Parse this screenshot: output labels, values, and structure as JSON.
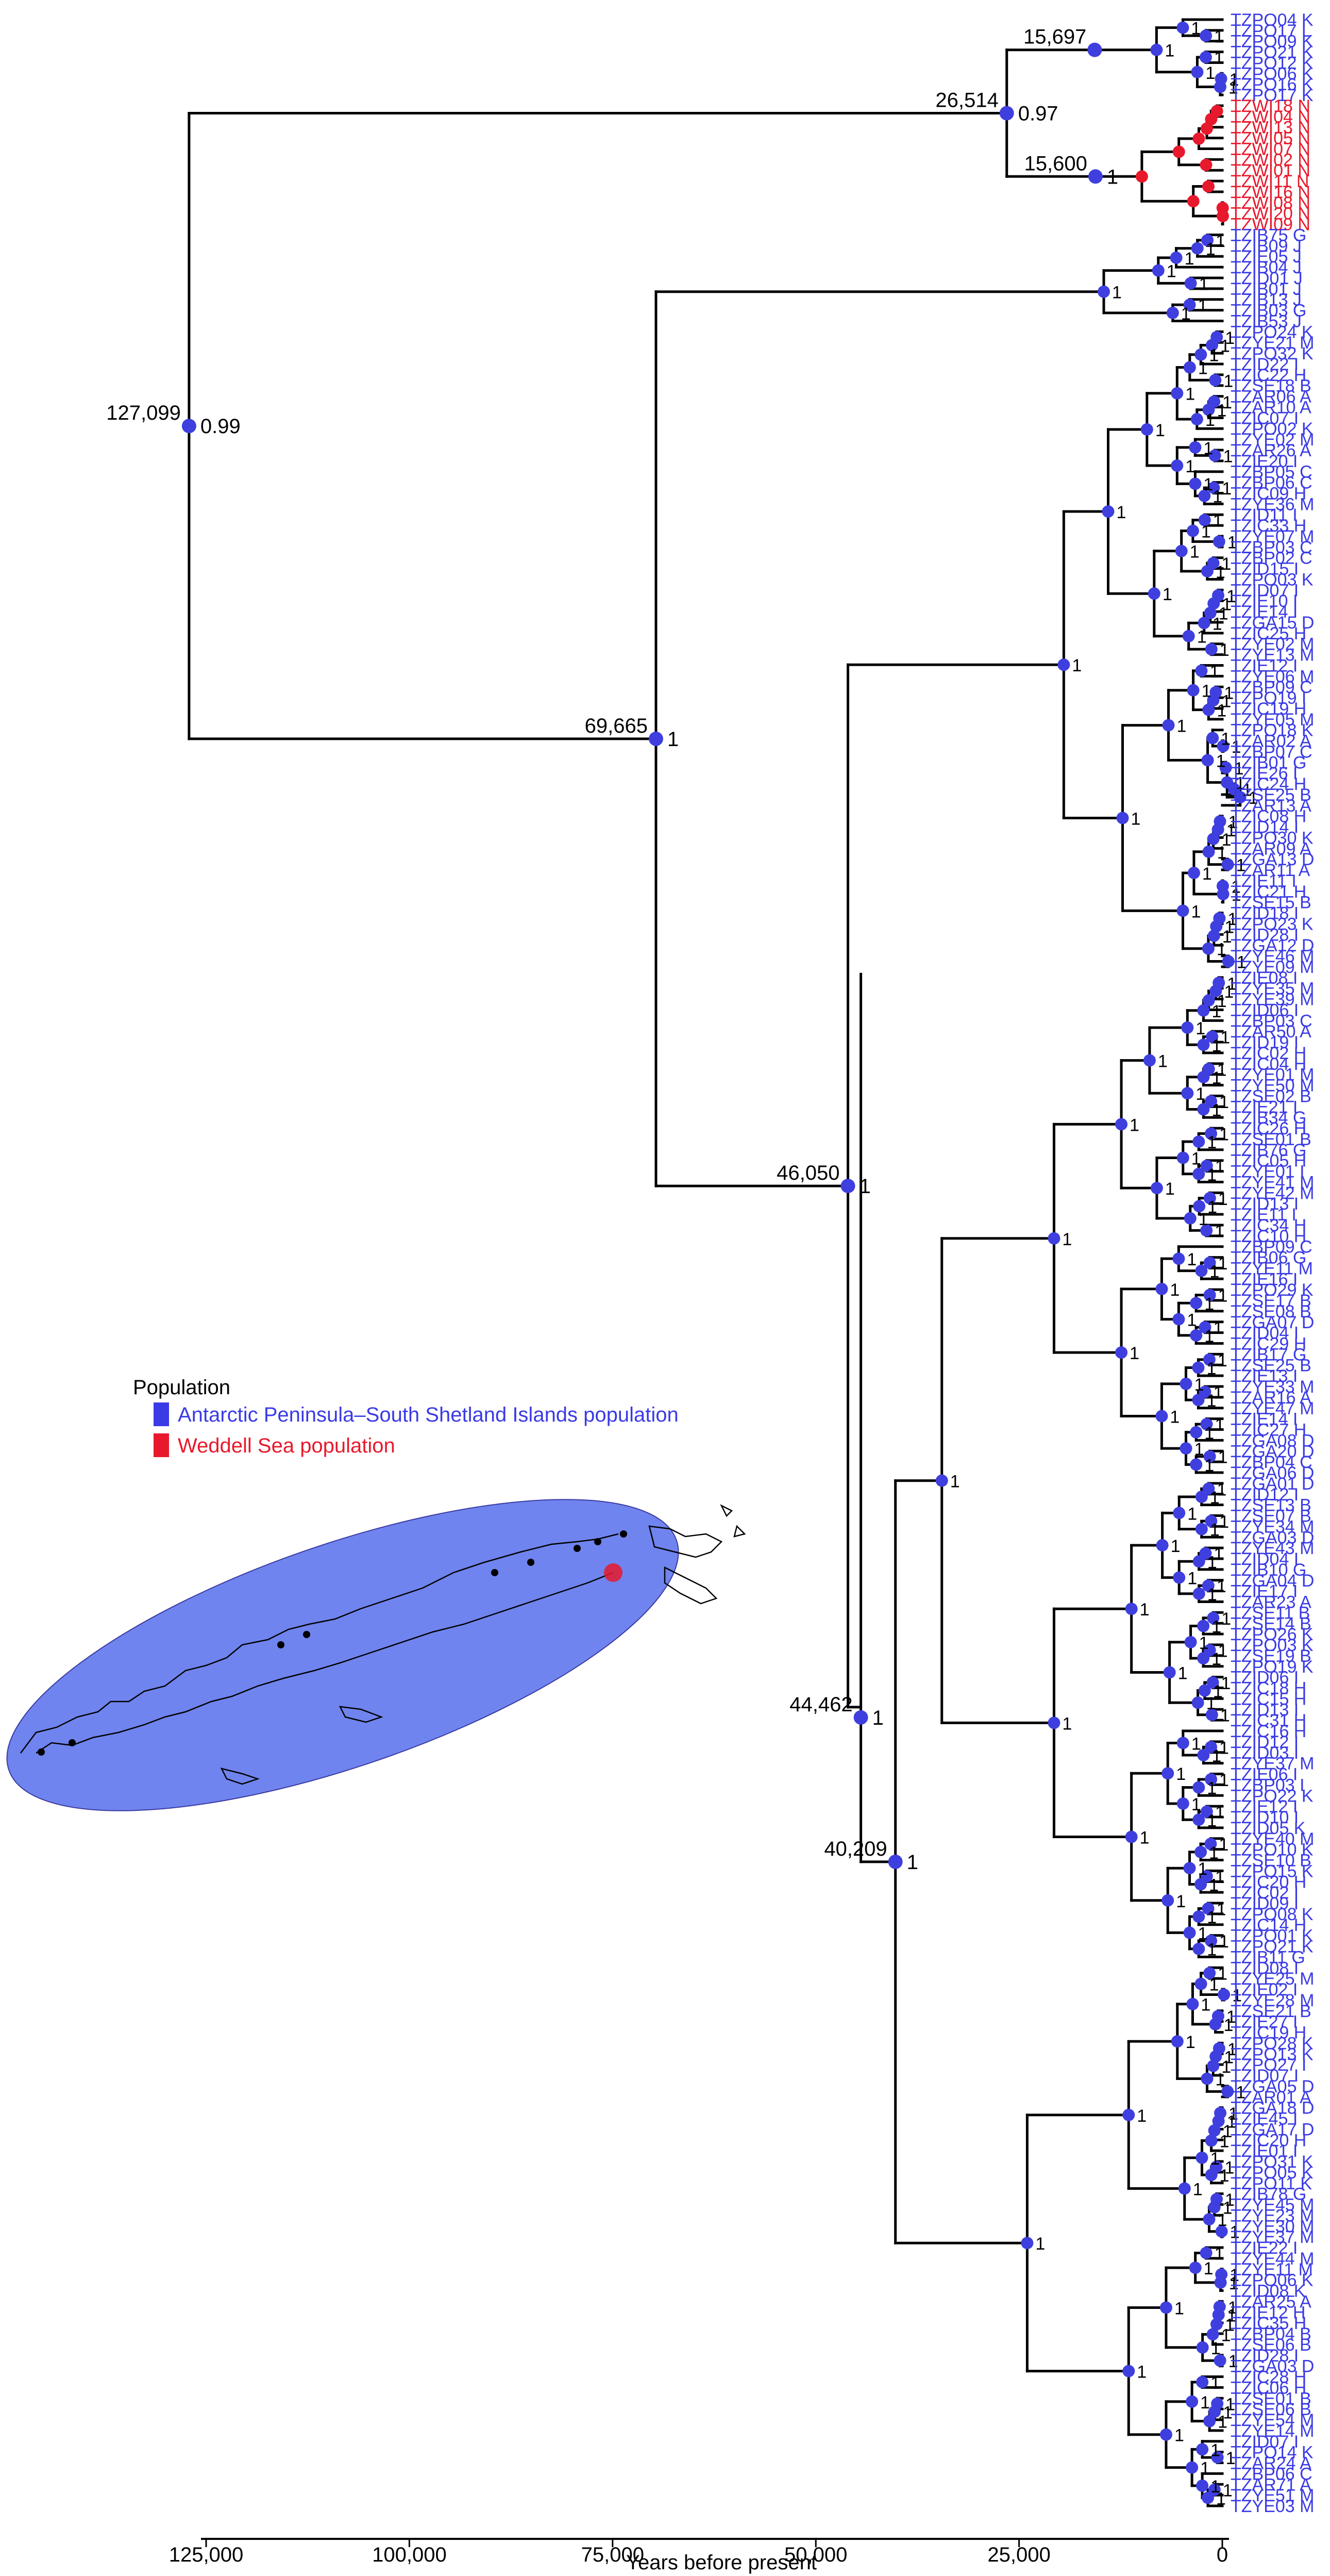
{
  "colors": {
    "antarctic": "#3a3ae6",
    "weddell": "#e8192c",
    "map_fill": "#6f84ee"
  },
  "axis": {
    "title": "Years before present",
    "ticks": [
      {
        "value": 125000,
        "label": "125,000"
      },
      {
        "value": 100000,
        "label": "100,000"
      },
      {
        "value": 75000,
        "label": "75,000"
      },
      {
        "value": 50000,
        "label": "50,000"
      },
      {
        "value": 25000,
        "label": "25,000"
      },
      {
        "value": 0,
        "label": "0"
      }
    ]
  },
  "legend": {
    "title": "Population",
    "items": [
      {
        "label": "Antarctic Peninsula–South Shetland Islands population",
        "color": "#3a3ae6"
      },
      {
        "label": "Weddell Sea population",
        "color": "#e8192c"
      }
    ]
  },
  "nodes": [
    {
      "id": "root",
      "age_label": "127,099",
      "support": "0.99",
      "age": 127099
    },
    {
      "id": "n26514",
      "age_label": "26,514",
      "support": "0.97",
      "age": 26514
    },
    {
      "id": "n15697",
      "age_label": "15,697",
      "support": "",
      "age": 15697
    },
    {
      "id": "n15600",
      "age_label": "15,600",
      "support": "1",
      "age": 15600
    },
    {
      "id": "n69665",
      "age_label": "69,665",
      "support": "1",
      "age": 69665
    },
    {
      "id": "n46050",
      "age_label": "46,050",
      "support": "1",
      "age": 46050
    },
    {
      "id": "n44462",
      "age_label": "44,462",
      "support": "1",
      "age": 44462
    },
    {
      "id": "n40209",
      "age_label": "40,209",
      "support": "1",
      "age": 40209
    }
  ],
  "tips": [
    {
      "label": "TZPO04 K",
      "pop": "antarctic"
    },
    {
      "label": "TZPO17 L",
      "pop": "antarctic"
    },
    {
      "label": "TZPO09 K",
      "pop": "antarctic"
    },
    {
      "label": "TZPO21 K",
      "pop": "antarctic"
    },
    {
      "label": "TZPO12 K",
      "pop": "antarctic"
    },
    {
      "label": "TZPO06 K",
      "pop": "antarctic"
    },
    {
      "label": "TZPO16 K",
      "pop": "antarctic"
    },
    {
      "label": "TZPO17 K",
      "pop": "antarctic"
    },
    {
      "label": "TZWI18 N",
      "pop": "weddell"
    },
    {
      "label": "TZWI04 N",
      "pop": "weddell"
    },
    {
      "label": "TZWI13 N",
      "pop": "weddell"
    },
    {
      "label": "TZWI05 N",
      "pop": "weddell"
    },
    {
      "label": "TZWI07 N",
      "pop": "weddell"
    },
    {
      "label": "TZWI02 N",
      "pop": "weddell"
    },
    {
      "label": "TZWI01 N",
      "pop": "weddell"
    },
    {
      "label": "TZWI11 N",
      "pop": "weddell"
    },
    {
      "label": "TZWI16 N",
      "pop": "weddell"
    },
    {
      "label": "TZWI08 N",
      "pop": "weddell"
    },
    {
      "label": "TZWI20 N",
      "pop": "weddell"
    },
    {
      "label": "TZWI09 N",
      "pop": "weddell"
    },
    {
      "label": "TZIB75 G",
      "pop": "antarctic"
    },
    {
      "label": "TZIB09 J",
      "pop": "antarctic"
    },
    {
      "label": "TZIE05 J",
      "pop": "antarctic"
    },
    {
      "label": "TZIB04 J",
      "pop": "antarctic"
    },
    {
      "label": "TZID01 J",
      "pop": "antarctic"
    },
    {
      "label": "TZIB01 J",
      "pop": "antarctic"
    },
    {
      "label": "TZIB13 J",
      "pop": "antarctic"
    },
    {
      "label": "TZIB03 G",
      "pop": "antarctic"
    },
    {
      "label": "TZIB53 J",
      "pop": "antarctic"
    },
    {
      "label": "TZPO24 K",
      "pop": "antarctic"
    },
    {
      "label": "TZYE21 M",
      "pop": "antarctic"
    },
    {
      "label": "TZPO32 K",
      "pop": "antarctic"
    },
    {
      "label": "TZID22 I",
      "pop": "antarctic"
    },
    {
      "label": "TZIC22 H",
      "pop": "antarctic"
    },
    {
      "label": "TZSE18 B",
      "pop": "antarctic"
    },
    {
      "label": "TZAR06 A",
      "pop": "antarctic"
    },
    {
      "label": "TZAR10 A",
      "pop": "antarctic"
    },
    {
      "label": "TZIC07 I",
      "pop": "antarctic"
    },
    {
      "label": "TZPO02 K",
      "pop": "antarctic"
    },
    {
      "label": "TZYE02 M",
      "pop": "antarctic"
    },
    {
      "label": "TZAR26 A",
      "pop": "antarctic"
    },
    {
      "label": "TZIE20 I",
      "pop": "antarctic"
    },
    {
      "label": "TZBP05 C",
      "pop": "antarctic"
    },
    {
      "label": "TZBP06 C",
      "pop": "antarctic"
    },
    {
      "label": "TZIC09 H",
      "pop": "antarctic"
    },
    {
      "label": "TZYE36 M",
      "pop": "antarctic"
    },
    {
      "label": "TZID11 I",
      "pop": "antarctic"
    },
    {
      "label": "TZIC33 H",
      "pop": "antarctic"
    },
    {
      "label": "TZYE07 M",
      "pop": "antarctic"
    },
    {
      "label": "TZBP03 C",
      "pop": "antarctic"
    },
    {
      "label": "TZBP02 C",
      "pop": "antarctic"
    },
    {
      "label": "TZID15 I",
      "pop": "antarctic"
    },
    {
      "label": "TZPO03 K",
      "pop": "antarctic"
    },
    {
      "label": "TZID07 I",
      "pop": "antarctic"
    },
    {
      "label": "TZIE10 I",
      "pop": "antarctic"
    },
    {
      "label": "TZIE14 I",
      "pop": "antarctic"
    },
    {
      "label": "TZGA15 D",
      "pop": "antarctic"
    },
    {
      "label": "TZIC25 H",
      "pop": "antarctic"
    },
    {
      "label": "TZYE02 M",
      "pop": "antarctic"
    },
    {
      "label": "TZYE13 M",
      "pop": "antarctic"
    },
    {
      "label": "TZIE12 I",
      "pop": "antarctic"
    },
    {
      "label": "TZYE06 M",
      "pop": "antarctic"
    },
    {
      "label": "TZBP09 C",
      "pop": "antarctic"
    },
    {
      "label": "TZPO19 I",
      "pop": "antarctic"
    },
    {
      "label": "TZIC19 H",
      "pop": "antarctic"
    },
    {
      "label": "TZYE05 M",
      "pop": "antarctic"
    },
    {
      "label": "TZPO18 K",
      "pop": "antarctic"
    },
    {
      "label": "TZAR02 A",
      "pop": "antarctic"
    },
    {
      "label": "TZBP07 C",
      "pop": "antarctic"
    },
    {
      "label": "TZIB01 G",
      "pop": "antarctic"
    },
    {
      "label": "TZIE26 I",
      "pop": "antarctic"
    },
    {
      "label": "TZIC24 H",
      "pop": "antarctic"
    },
    {
      "label": "TZSE25 B",
      "pop": "antarctic"
    },
    {
      "label": "TZAR13 A",
      "pop": "antarctic"
    },
    {
      "label": "TZIC08 H",
      "pop": "antarctic"
    },
    {
      "label": "TZID14 I",
      "pop": "antarctic"
    },
    {
      "label": "TZPO30 K",
      "pop": "antarctic"
    },
    {
      "label": "TZAR09 A",
      "pop": "antarctic"
    },
    {
      "label": "TZGA13 D",
      "pop": "antarctic"
    },
    {
      "label": "TZAR11 A",
      "pop": "antarctic"
    },
    {
      "label": "TZIE11 I",
      "pop": "antarctic"
    },
    {
      "label": "TZIC21 H",
      "pop": "antarctic"
    },
    {
      "label": "TZSE15 B",
      "pop": "antarctic"
    },
    {
      "label": "TZID18 I",
      "pop": "antarctic"
    },
    {
      "label": "TZPO23 K",
      "pop": "antarctic"
    },
    {
      "label": "TZID28 I",
      "pop": "antarctic"
    },
    {
      "label": "TZGA12 D",
      "pop": "antarctic"
    },
    {
      "label": "TZYE46 M",
      "pop": "antarctic"
    },
    {
      "label": "TZYE09 M",
      "pop": "antarctic"
    },
    {
      "label": "TZIE08 I",
      "pop": "antarctic"
    },
    {
      "label": "TZYE35 M",
      "pop": "antarctic"
    },
    {
      "label": "TZYE39 M",
      "pop": "antarctic"
    },
    {
      "label": "TZID06 I",
      "pop": "antarctic"
    },
    {
      "label": "TZBP03 C",
      "pop": "antarctic"
    },
    {
      "label": "TZAR50 A",
      "pop": "antarctic"
    },
    {
      "label": "TZID19 I",
      "pop": "antarctic"
    },
    {
      "label": "TZIC02 H",
      "pop": "antarctic"
    },
    {
      "label": "TZIC04 H",
      "pop": "antarctic"
    },
    {
      "label": "TZYE01 M",
      "pop": "antarctic"
    },
    {
      "label": "TZYE50 M",
      "pop": "antarctic"
    },
    {
      "label": "TZSE02 B",
      "pop": "antarctic"
    },
    {
      "label": "TZIE21 I",
      "pop": "antarctic"
    },
    {
      "label": "TZIB34 G",
      "pop": "antarctic"
    },
    {
      "label": "TZIC26 H",
      "pop": "antarctic"
    },
    {
      "label": "TZSE01 B",
      "pop": "antarctic"
    },
    {
      "label": "TZIB76 G",
      "pop": "antarctic"
    },
    {
      "label": "TZIC05 H",
      "pop": "antarctic"
    },
    {
      "label": "TZYE01 I",
      "pop": "antarctic"
    },
    {
      "label": "TZYE41 M",
      "pop": "antarctic"
    },
    {
      "label": "TZYE42 M",
      "pop": "antarctic"
    },
    {
      "label": "TZID13 I",
      "pop": "antarctic"
    },
    {
      "label": "TZIE11 I",
      "pop": "antarctic"
    },
    {
      "label": "TZIC34 H",
      "pop": "antarctic"
    },
    {
      "label": "TZIC10 H",
      "pop": "antarctic"
    },
    {
      "label": "TZBP09 C",
      "pop": "antarctic"
    },
    {
      "label": "TZIB06 G",
      "pop": "antarctic"
    },
    {
      "label": "TZYE11 M",
      "pop": "antarctic"
    },
    {
      "label": "TZIE16 I",
      "pop": "antarctic"
    },
    {
      "label": "TZPO29 K",
      "pop": "antarctic"
    },
    {
      "label": "TZSE17 B",
      "pop": "antarctic"
    },
    {
      "label": "TZSE08 B",
      "pop": "antarctic"
    },
    {
      "label": "TZGA07 D",
      "pop": "antarctic"
    },
    {
      "label": "TZID04 I",
      "pop": "antarctic"
    },
    {
      "label": "TZIC29 H",
      "pop": "antarctic"
    },
    {
      "label": "TZIB17 G",
      "pop": "antarctic"
    },
    {
      "label": "TZSE25 B",
      "pop": "antarctic"
    },
    {
      "label": "TZIE13 I",
      "pop": "antarctic"
    },
    {
      "label": "TZYE33 M",
      "pop": "antarctic"
    },
    {
      "label": "TZAR16 A",
      "pop": "antarctic"
    },
    {
      "label": "TZYE47 M",
      "pop": "antarctic"
    },
    {
      "label": "TZIE14 I",
      "pop": "antarctic"
    },
    {
      "label": "TZIC27 H",
      "pop": "antarctic"
    },
    {
      "label": "TZGA08 D",
      "pop": "antarctic"
    },
    {
      "label": "TZGA20 D",
      "pop": "antarctic"
    },
    {
      "label": "TZBP04 C",
      "pop": "antarctic"
    },
    {
      "label": "TZGA06 D",
      "pop": "antarctic"
    },
    {
      "label": "TZGA01 D",
      "pop": "antarctic"
    },
    {
      "label": "TZID12 I",
      "pop": "antarctic"
    },
    {
      "label": "TZSE13 B",
      "pop": "antarctic"
    },
    {
      "label": "TZSE07 B",
      "pop": "antarctic"
    },
    {
      "label": "TZYE34 M",
      "pop": "antarctic"
    },
    {
      "label": "TZGA03 D",
      "pop": "antarctic"
    },
    {
      "label": "TZYE43 M",
      "pop": "antarctic"
    },
    {
      "label": "TZID04 I",
      "pop": "antarctic"
    },
    {
      "label": "TZIB10 G",
      "pop": "antarctic"
    },
    {
      "label": "TZGA04 D",
      "pop": "antarctic"
    },
    {
      "label": "TZIE17 I",
      "pop": "antarctic"
    },
    {
      "label": "TZAR23 A",
      "pop": "antarctic"
    },
    {
      "label": "TZSE11 B",
      "pop": "antarctic"
    },
    {
      "label": "TZSE14 B",
      "pop": "antarctic"
    },
    {
      "label": "TZPO26 K",
      "pop": "antarctic"
    },
    {
      "label": "TZPO03 K",
      "pop": "antarctic"
    },
    {
      "label": "TZSE19 B",
      "pop": "antarctic"
    },
    {
      "label": "TZPO19 K",
      "pop": "antarctic"
    },
    {
      "label": "TZID06 I",
      "pop": "antarctic"
    },
    {
      "label": "TZIC18 H",
      "pop": "antarctic"
    },
    {
      "label": "TZIC15 H",
      "pop": "antarctic"
    },
    {
      "label": "TZID13 I",
      "pop": "antarctic"
    },
    {
      "label": "TZIC31 H",
      "pop": "antarctic"
    },
    {
      "label": "TZIC16 H",
      "pop": "antarctic"
    },
    {
      "label": "TZID12 I",
      "pop": "antarctic"
    },
    {
      "label": "TZID03 I",
      "pop": "antarctic"
    },
    {
      "label": "TZYE37 M",
      "pop": "antarctic"
    },
    {
      "label": "TZIE06 I",
      "pop": "antarctic"
    },
    {
      "label": "TZBP03 I",
      "pop": "antarctic"
    },
    {
      "label": "TZPO22 K",
      "pop": "antarctic"
    },
    {
      "label": "TZIE12 I",
      "pop": "antarctic"
    },
    {
      "label": "TZID10 I",
      "pop": "antarctic"
    },
    {
      "label": "TZID05 K",
      "pop": "antarctic"
    },
    {
      "label": "TZYE40 M",
      "pop": "antarctic"
    },
    {
      "label": "TZPO10 K",
      "pop": "antarctic"
    },
    {
      "label": "TZSE10 B",
      "pop": "antarctic"
    },
    {
      "label": "TZPO15 K",
      "pop": "antarctic"
    },
    {
      "label": "TZIC20 H",
      "pop": "antarctic"
    },
    {
      "label": "TZIC02 I",
      "pop": "antarctic"
    },
    {
      "label": "TZID09 I",
      "pop": "antarctic"
    },
    {
      "label": "TZPO08 K",
      "pop": "antarctic"
    },
    {
      "label": "TZIC14 H",
      "pop": "antarctic"
    },
    {
      "label": "TZPO01 K",
      "pop": "antarctic"
    },
    {
      "label": "TZPO21 K",
      "pop": "antarctic"
    },
    {
      "label": "TZIB11 G",
      "pop": "antarctic"
    },
    {
      "label": "TZID08 I",
      "pop": "antarctic"
    },
    {
      "label": "TZYE25 M",
      "pop": "antarctic"
    },
    {
      "label": "TZIE02 I",
      "pop": "antarctic"
    },
    {
      "label": "TZYE28 M",
      "pop": "antarctic"
    },
    {
      "label": "TZSE21 B",
      "pop": "antarctic"
    },
    {
      "label": "TZIE27 I",
      "pop": "antarctic"
    },
    {
      "label": "TZIC19 H",
      "pop": "antarctic"
    },
    {
      "label": "TZPO28 K",
      "pop": "antarctic"
    },
    {
      "label": "TZPO13 K",
      "pop": "antarctic"
    },
    {
      "label": "TZPO27 I",
      "pop": "antarctic"
    },
    {
      "label": "TZID07 I",
      "pop": "antarctic"
    },
    {
      "label": "TZGA05 D",
      "pop": "antarctic"
    },
    {
      "label": "TZAR01 A",
      "pop": "antarctic"
    },
    {
      "label": "TZGA18 D",
      "pop": "antarctic"
    },
    {
      "label": "TZIE45 I",
      "pop": "antarctic"
    },
    {
      "label": "TZGA17 D",
      "pop": "antarctic"
    },
    {
      "label": "TZIC20 H",
      "pop": "antarctic"
    },
    {
      "label": "TZIE01 I",
      "pop": "antarctic"
    },
    {
      "label": "TZPO31 K",
      "pop": "antarctic"
    },
    {
      "label": "TZPO05 K",
      "pop": "antarctic"
    },
    {
      "label": "TZPO11 K",
      "pop": "antarctic"
    },
    {
      "label": "TZIB78 G",
      "pop": "antarctic"
    },
    {
      "label": "TZYE45 M",
      "pop": "antarctic"
    },
    {
      "label": "TZYE23 M",
      "pop": "antarctic"
    },
    {
      "label": "TZYE30 M",
      "pop": "antarctic"
    },
    {
      "label": "TZYE37 M",
      "pop": "antarctic"
    },
    {
      "label": "TZIE22 I",
      "pop": "antarctic"
    },
    {
      "label": "TZYE44 M",
      "pop": "antarctic"
    },
    {
      "label": "TZYE11 M",
      "pop": "antarctic"
    },
    {
      "label": "TZPO06 K",
      "pop": "antarctic"
    },
    {
      "label": "TZID08 K",
      "pop": "antarctic"
    },
    {
      "label": "TZAR25 A",
      "pop": "antarctic"
    },
    {
      "label": "TZIE12 H",
      "pop": "antarctic"
    },
    {
      "label": "TZIC35 H",
      "pop": "antarctic"
    },
    {
      "label": "TZBP04 B",
      "pop": "antarctic"
    },
    {
      "label": "TZSE06 B",
      "pop": "antarctic"
    },
    {
      "label": "TZID28 I",
      "pop": "antarctic"
    },
    {
      "label": "TZGA03 D",
      "pop": "antarctic"
    },
    {
      "label": "TZIC28 H",
      "pop": "antarctic"
    },
    {
      "label": "TZIC06 H",
      "pop": "antarctic"
    },
    {
      "label": "TZSE01 B",
      "pop": "antarctic"
    },
    {
      "label": "TZSE06 B",
      "pop": "antarctic"
    },
    {
      "label": "TZYE54 M",
      "pop": "antarctic"
    },
    {
      "label": "TZYE14 M",
      "pop": "antarctic"
    },
    {
      "label": "TZID07 I",
      "pop": "antarctic"
    },
    {
      "label": "TZPO14 K",
      "pop": "antarctic"
    },
    {
      "label": "TZAR24 A",
      "pop": "antarctic"
    },
    {
      "label": "TZBP06 C",
      "pop": "antarctic"
    },
    {
      "label": "TZAR71 A",
      "pop": "antarctic"
    },
    {
      "label": "TZYE51 M",
      "pop": "antarctic"
    },
    {
      "label": "TZYE03 M",
      "pop": "antarctic"
    }
  ]
}
